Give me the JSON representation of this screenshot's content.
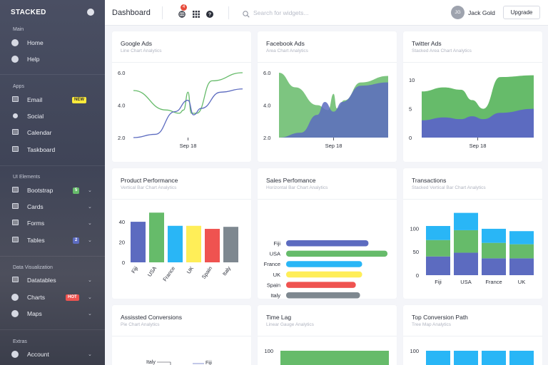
{
  "sidebar": {
    "brand": "STACKED",
    "sections": {
      "main": "Main",
      "apps": "Apps",
      "ui_elements": "UI Elements",
      "data_visualization": "Data Visualization",
      "extras": "Extras"
    },
    "items": [
      {
        "label": "Home",
        "icon": "home-icon"
      },
      {
        "label": "Help",
        "icon": "help-icon"
      },
      {
        "label": "Email",
        "icon": "mail-icon",
        "badge": "NEW"
      },
      {
        "label": "Social",
        "icon": "user-icon"
      },
      {
        "label": "Calendar",
        "icon": "calendar-icon"
      },
      {
        "label": "Taskboard",
        "icon": "taskboard-icon"
      },
      {
        "label": "Bootstrap",
        "icon": "box-icon",
        "badge": "5"
      },
      {
        "label": "Cards",
        "icon": "cards-icon"
      },
      {
        "label": "Forms",
        "icon": "forms-icon"
      },
      {
        "label": "Tables",
        "icon": "table-icon",
        "badge": "2"
      },
      {
        "label": "Datatables",
        "icon": "datatable-icon"
      },
      {
        "label": "Charts",
        "icon": "pie-chart-icon",
        "badge": "HOT"
      },
      {
        "label": "Maps",
        "icon": "map-icon"
      },
      {
        "label": "Account",
        "icon": "users-icon"
      }
    ]
  },
  "topbar": {
    "title": "Dashboard",
    "notification_count": "4",
    "search_placeholder": "Search for widgets...",
    "user_initials": "JG",
    "user_name": "Jack Gold",
    "upgrade_label": "Upgrade"
  },
  "cards": [
    {
      "title": "Google Ads",
      "subtitle": "Line Chart Analytics"
    },
    {
      "title": "Facebook Ads",
      "subtitle": "Area Chart Analytics"
    },
    {
      "title": "Twitter Ads",
      "subtitle": "Stacked Area Chart Analytics"
    },
    {
      "title": "Product Performance",
      "subtitle": "Vertical Bar Chart Analytics"
    },
    {
      "title": "Sales Perfomance",
      "subtitle": "Horizontal Bar Chart Analytics"
    },
    {
      "title": "Transactions",
      "subtitle": "Stacked Vertical Bar Chart Analytics"
    },
    {
      "title": "Assissted Conversions",
      "subtitle": "Pie Chart Analytics"
    },
    {
      "title": "Time Lag",
      "subtitle": "Linear Gauge Analytics"
    },
    {
      "title": "Top Conversion Path",
      "subtitle": "Tree Map Analytics"
    }
  ],
  "colors": {
    "blue": "#5c6bc0",
    "green": "#66bb6a",
    "light_blue": "#29b6f6",
    "yellow": "#ffee58",
    "red": "#ef5350",
    "grey": "#7e8890"
  },
  "chart_data": [
    {
      "type": "line",
      "title": "Google Ads",
      "x_tick": "Sep 18",
      "yticks": [
        2.0,
        4.0,
        6.0
      ],
      "ylim": [
        2.0,
        6.0
      ],
      "series": [
        {
          "color": "#66bb6a",
          "points": [
            [
              0,
              4.9
            ],
            [
              0.3,
              3.7
            ],
            [
              0.42,
              3.5
            ],
            [
              0.46,
              3.7
            ],
            [
              0.5,
              4.8
            ],
            [
              0.53,
              3.5
            ],
            [
              0.58,
              3.5
            ],
            [
              0.72,
              5.5
            ],
            [
              1,
              6.0
            ]
          ]
        },
        {
          "color": "#5c6bc0",
          "points": [
            [
              0,
              2.0
            ],
            [
              0.2,
              2.2
            ],
            [
              0.38,
              3.6
            ],
            [
              0.5,
              4.3
            ],
            [
              0.55,
              3.4
            ],
            [
              0.62,
              3.8
            ],
            [
              0.8,
              4.8
            ],
            [
              1,
              5.0
            ]
          ]
        }
      ]
    },
    {
      "type": "area",
      "title": "Facebook Ads",
      "x_tick": "Sep 18",
      "yticks": [
        2.0,
        4.0,
        6.0
      ],
      "ylim": [
        2.0,
        6.0
      ],
      "series": [
        {
          "color": "#66bb6a",
          "points": [
            [
              0,
              6.0
            ],
            [
              0.15,
              5.1
            ],
            [
              0.35,
              4.0
            ],
            [
              0.45,
              3.7
            ],
            [
              0.5,
              4.7
            ],
            [
              0.53,
              3.8
            ],
            [
              0.6,
              4.3
            ],
            [
              0.75,
              5.4
            ],
            [
              1,
              5.8
            ]
          ]
        },
        {
          "color": "#5c6bc0",
          "points": [
            [
              0,
              2.0
            ],
            [
              0.2,
              2.3
            ],
            [
              0.35,
              3.4
            ],
            [
              0.42,
              4.2
            ],
            [
              0.5,
              3.6
            ],
            [
              0.58,
              4.2
            ],
            [
              0.75,
              5.2
            ],
            [
              1,
              5.4
            ]
          ]
        }
      ]
    },
    {
      "type": "area",
      "title": "Twitter Ads",
      "x_tick": "Sep 18",
      "yticks": [
        0,
        5,
        10
      ],
      "ylim": [
        0,
        11.5
      ],
      "series": [
        {
          "color": "#5c6bc0",
          "points": [
            [
              0,
              3.0
            ],
            [
              0.2,
              3.5
            ],
            [
              0.35,
              3.2
            ],
            [
              0.45,
              3.7
            ],
            [
              0.55,
              3.2
            ],
            [
              0.7,
              4.3
            ],
            [
              1,
              5.0
            ]
          ]
        },
        {
          "color": "#66bb6a",
          "points": [
            [
              0,
              8.0
            ],
            [
              0.2,
              8.7
            ],
            [
              0.35,
              8.3
            ],
            [
              0.45,
              6.5
            ],
            [
              0.55,
              5.0
            ],
            [
              0.7,
              10.5
            ],
            [
              1,
              10.8
            ]
          ]
        }
      ]
    },
    {
      "type": "bar",
      "title": "Product Performance",
      "categories": [
        "Fiji",
        "USA",
        "France",
        "UK",
        "Spain",
        "Italy"
      ],
      "values": [
        40,
        49,
        36,
        36,
        33,
        35
      ],
      "colors": [
        "#5c6bc0",
        "#66bb6a",
        "#29b6f6",
        "#ffee58",
        "#ef5350",
        "#7e8890"
      ],
      "yticks": [
        0,
        20,
        40
      ],
      "ylim": [
        0,
        52
      ]
    },
    {
      "type": "bar",
      "title": "Sales Perfomance",
      "orientation": "horizontal",
      "categories": [
        "Fiji",
        "USA",
        "France",
        "UK",
        "Spain",
        "Italy"
      ],
      "values": [
        39,
        48,
        36,
        36,
        33,
        35
      ],
      "colors": [
        "#5c6bc0",
        "#66bb6a",
        "#29b6f6",
        "#ffee58",
        "#ef5350",
        "#7e8890"
      ],
      "xticks": [
        0,
        20,
        40
      ],
      "xlim": [
        0,
        49
      ]
    },
    {
      "type": "bar",
      "title": "Transactions",
      "stacked": true,
      "categories": [
        "Fiji",
        "USA",
        "France",
        "UK"
      ],
      "series": [
        {
          "color": "#5c6bc0",
          "values": [
            40,
            48,
            36,
            36
          ]
        },
        {
          "color": "#66bb6a",
          "values": [
            35,
            48,
            33,
            30
          ]
        },
        {
          "color": "#29b6f6",
          "values": [
            30,
            37,
            30,
            28
          ]
        }
      ],
      "yticks": [
        0,
        50,
        100
      ],
      "ylim": [
        0,
        140
      ]
    },
    {
      "type": "pie",
      "title": "Assissted Conversions",
      "labels": [
        "Italy",
        "Fiji"
      ]
    },
    {
      "type": "bar",
      "title": "Time Lag",
      "yticks": [
        100
      ]
    },
    {
      "type": "heatmap",
      "title": "Top Conversion Path",
      "yticks": [
        100
      ]
    }
  ]
}
